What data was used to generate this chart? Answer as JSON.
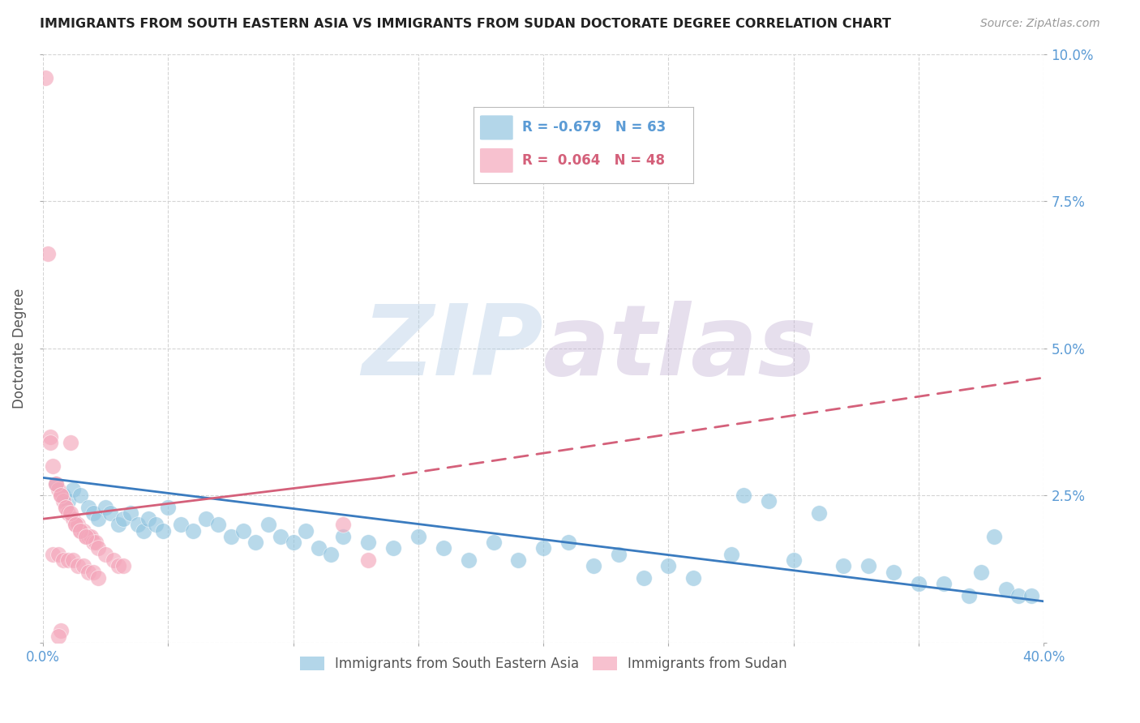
{
  "title": "IMMIGRANTS FROM SOUTH EASTERN ASIA VS IMMIGRANTS FROM SUDAN DOCTORATE DEGREE CORRELATION CHART",
  "source": "Source: ZipAtlas.com",
  "ylabel": "Doctorate Degree",
  "watermark_zip": "ZIP",
  "watermark_atlas": "atlas",
  "xlim": [
    0.0,
    0.4
  ],
  "ylim": [
    0.0,
    0.1
  ],
  "xticks": [
    0.0,
    0.05,
    0.1,
    0.15,
    0.2,
    0.25,
    0.3,
    0.35,
    0.4
  ],
  "yticks": [
    0.0,
    0.025,
    0.05,
    0.075,
    0.1
  ],
  "legend1_label": "Immigrants from South Eastern Asia",
  "legend2_label": "Immigrants from Sudan",
  "R1": "-0.679",
  "N1": "63",
  "R2": "0.064",
  "N2": "48",
  "color_blue": "#93c5e0",
  "color_pink": "#f4a7bb",
  "line_color_blue": "#3a7bbf",
  "line_color_pink": "#d4607a",
  "grid_color": "#d0d0d0",
  "background_color": "#ffffff",
  "title_color": "#222222",
  "axis_label_color": "#555555",
  "tick_color": "#5b9bd5",
  "trend_blue_x0": 0.0,
  "trend_blue_y0": 0.028,
  "trend_blue_x1": 0.4,
  "trend_blue_y1": 0.007,
  "trend_pink_solid_x0": 0.0,
  "trend_pink_solid_y0": 0.021,
  "trend_pink_solid_x1": 0.135,
  "trend_pink_solid_y1": 0.028,
  "trend_pink_dash_x0": 0.135,
  "trend_pink_dash_y0": 0.028,
  "trend_pink_dash_x1": 0.4,
  "trend_pink_dash_y1": 0.045,
  "scatter_blue_x": [
    0.005,
    0.008,
    0.01,
    0.012,
    0.015,
    0.018,
    0.02,
    0.022,
    0.025,
    0.027,
    0.03,
    0.032,
    0.035,
    0.038,
    0.04,
    0.042,
    0.045,
    0.048,
    0.05,
    0.055,
    0.06,
    0.065,
    0.07,
    0.075,
    0.08,
    0.085,
    0.09,
    0.095,
    0.1,
    0.105,
    0.11,
    0.115,
    0.12,
    0.13,
    0.14,
    0.15,
    0.16,
    0.17,
    0.18,
    0.19,
    0.2,
    0.21,
    0.22,
    0.23,
    0.24,
    0.25,
    0.26,
    0.275,
    0.28,
    0.29,
    0.3,
    0.31,
    0.32,
    0.33,
    0.34,
    0.35,
    0.36,
    0.37,
    0.375,
    0.38,
    0.385,
    0.39,
    0.395
  ],
  "scatter_blue_y": [
    0.027,
    0.025,
    0.024,
    0.026,
    0.025,
    0.023,
    0.022,
    0.021,
    0.023,
    0.022,
    0.02,
    0.021,
    0.022,
    0.02,
    0.019,
    0.021,
    0.02,
    0.019,
    0.023,
    0.02,
    0.019,
    0.021,
    0.02,
    0.018,
    0.019,
    0.017,
    0.02,
    0.018,
    0.017,
    0.019,
    0.016,
    0.015,
    0.018,
    0.017,
    0.016,
    0.018,
    0.016,
    0.014,
    0.017,
    0.014,
    0.016,
    0.017,
    0.013,
    0.015,
    0.011,
    0.013,
    0.011,
    0.015,
    0.025,
    0.024,
    0.014,
    0.022,
    0.013,
    0.013,
    0.012,
    0.01,
    0.01,
    0.008,
    0.012,
    0.018,
    0.009,
    0.008,
    0.008
  ],
  "scatter_pink_x": [
    0.001,
    0.002,
    0.003,
    0.004,
    0.005,
    0.006,
    0.007,
    0.008,
    0.009,
    0.01,
    0.011,
    0.012,
    0.013,
    0.014,
    0.015,
    0.016,
    0.017,
    0.018,
    0.019,
    0.02,
    0.021,
    0.022,
    0.003,
    0.005,
    0.007,
    0.009,
    0.011,
    0.013,
    0.015,
    0.017,
    0.004,
    0.006,
    0.008,
    0.01,
    0.012,
    0.014,
    0.016,
    0.018,
    0.02,
    0.022,
    0.025,
    0.028,
    0.03,
    0.032,
    0.007,
    0.006,
    0.12,
    0.13
  ],
  "scatter_pink_y": [
    0.096,
    0.066,
    0.035,
    0.03,
    0.027,
    0.026,
    0.025,
    0.024,
    0.023,
    0.022,
    0.034,
    0.021,
    0.02,
    0.02,
    0.019,
    0.019,
    0.018,
    0.018,
    0.018,
    0.017,
    0.017,
    0.016,
    0.034,
    0.027,
    0.025,
    0.023,
    0.022,
    0.02,
    0.019,
    0.018,
    0.015,
    0.015,
    0.014,
    0.014,
    0.014,
    0.013,
    0.013,
    0.012,
    0.012,
    0.011,
    0.015,
    0.014,
    0.013,
    0.013,
    0.002,
    0.001,
    0.02,
    0.014
  ]
}
